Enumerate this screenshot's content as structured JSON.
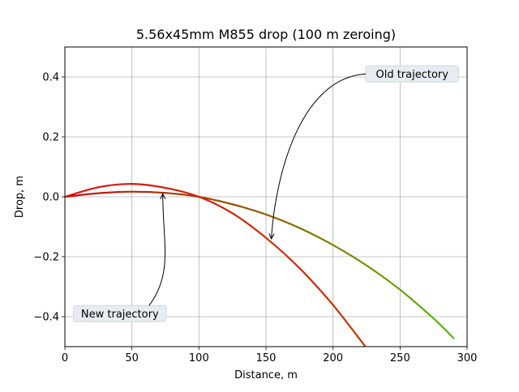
{
  "chart_data": {
    "type": "line",
    "title": "5.56x45mm M855 drop (100 m zeroing)",
    "xlabel": "Distance, m",
    "ylabel": "Drop, m",
    "xlim": [
      0,
      300
    ],
    "ylim": [
      -0.5,
      0.5
    ],
    "xticks": [
      0,
      50,
      100,
      150,
      200,
      250,
      300
    ],
    "yticks": [
      -0.4,
      -0.2,
      0.0,
      0.2,
      0.4
    ],
    "xtick_labels": [
      "0",
      "50",
      "100",
      "150",
      "200",
      "250",
      "300"
    ],
    "ytick_labels": [
      "−0.4",
      "−0.2",
      "0.0",
      "0.2",
      "0.4"
    ],
    "grid": true,
    "series": [
      {
        "x": [
          0,
          25,
          50,
          75,
          100,
          125,
          150,
          175,
          200,
          225,
          250,
          275,
          290
        ],
        "y": [
          0.0,
          0.012,
          0.017,
          0.013,
          0.0,
          -0.025,
          -0.059,
          -0.104,
          -0.161,
          -0.229,
          -0.31,
          -0.406,
          -0.472
        ],
        "color_start": "#cc0000",
        "color_end": "#55bb00"
      },
      {
        "x": [
          0,
          25,
          50,
          75,
          100,
          125,
          150,
          175,
          200,
          225
        ],
        "y": [
          0.0,
          0.032,
          0.043,
          0.03,
          0.0,
          -0.055,
          -0.137,
          -0.238,
          -0.361,
          -0.505
        ],
        "color_start": "#dd1111",
        "color_end": "#cc3300"
      }
    ],
    "annotations": [
      {
        "text": "Old trajectory",
        "target": [
          154,
          -0.14
        ],
        "label_at": [
          259,
          0.41
        ]
      },
      {
        "text": "New trajectory",
        "target": [
          73,
          0.01
        ],
        "label_at": [
          41,
          -0.39
        ]
      }
    ]
  }
}
